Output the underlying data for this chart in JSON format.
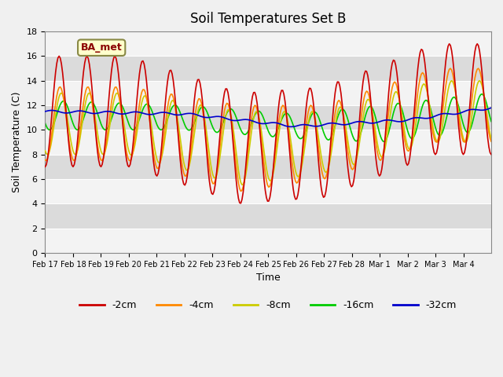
{
  "title": "Soil Temperatures Set B",
  "xlabel": "Time",
  "ylabel": "Soil Temperature (C)",
  "ylim": [
    0,
    18
  ],
  "yticks": [
    0,
    2,
    4,
    6,
    8,
    10,
    12,
    14,
    16,
    18
  ],
  "background_color": "#e8e8e8",
  "legend_label": "BA_met",
  "colors": {
    "-2cm": "#cc0000",
    "-4cm": "#ff8800",
    "-8cm": "#cccc00",
    "-16cm": "#00cc00",
    "-32cm": "#0000cc"
  },
  "x_tick_labels": [
    "Feb 17",
    "Feb 18",
    "Feb 19",
    "Feb 20",
    "Feb 21",
    "Feb 22",
    "Feb 23",
    "Feb 24",
    "Feb 25",
    "Feb 26",
    "Feb 27",
    "Feb 28",
    "Mar 1",
    "Mar 2",
    "Mar 3",
    "Mar 4"
  ],
  "n_days": 16
}
